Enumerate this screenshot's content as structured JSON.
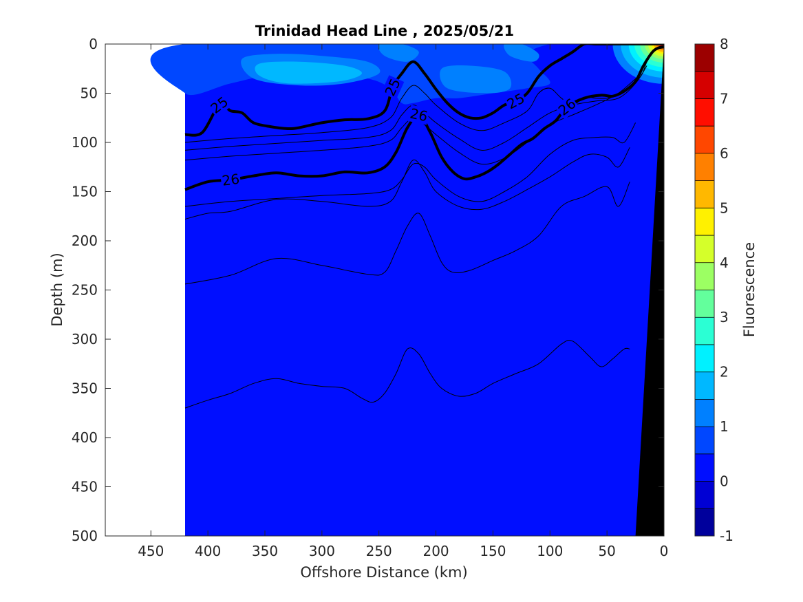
{
  "chart_data": {
    "type": "contour",
    "title": "Trinidad Head Line , 2025/05/21",
    "xlabel": "Offshore Distance (km)",
    "ylabel": "Depth (m)",
    "xlim": [
      490,
      0
    ],
    "ylim": [
      500,
      0
    ],
    "x_reversed": true,
    "y_reversed": true,
    "x_ticks": [
      450,
      400,
      350,
      300,
      250,
      200,
      150,
      100,
      50,
      0
    ],
    "y_ticks": [
      0,
      50,
      100,
      150,
      200,
      250,
      300,
      350,
      400,
      450,
      500
    ],
    "data_extent_x": [
      420,
      0
    ],
    "colorbar": {
      "label": "Fluorescence",
      "range": [
        -1,
        8
      ],
      "step": 0.5,
      "ticks": [
        -1,
        0,
        1,
        2,
        3,
        4,
        5,
        6,
        7,
        8
      ],
      "colormap": "jet"
    },
    "background_fluorescence": 0.3,
    "fluorescence_patches": [
      {
        "level": 0.7,
        "x": [
          420,
          380,
          340,
          300,
          260,
          240,
          230,
          220,
          200,
          180,
          150,
          120,
          100,
          110,
          120,
          100,
          80,
          60,
          40,
          30,
          420
        ],
        "y": [
          50,
          40,
          30,
          30,
          35,
          45,
          60,
          60,
          55,
          55,
          50,
          45,
          40,
          25,
          10,
          0,
          0,
          0,
          0,
          0,
          0
        ]
      },
      {
        "level": 1.2,
        "x": [
          370,
          340,
          300,
          260,
          250,
          280,
          320,
          360
        ],
        "y": [
          15,
          10,
          12,
          18,
          30,
          40,
          42,
          35
        ]
      },
      {
        "level": 1.7,
        "x": [
          355,
          320,
          280,
          265,
          285,
          330,
          355
        ],
        "y": [
          20,
          18,
          22,
          30,
          38,
          40,
          32
        ]
      },
      {
        "level": 1.2,
        "x": [
          195,
          170,
          140,
          135,
          155,
          190
        ],
        "y": [
          25,
          22,
          28,
          45,
          50,
          45
        ]
      },
      {
        "level": 1.2,
        "x": [
          250,
          230,
          215,
          225,
          245
        ],
        "y": [
          0,
          0,
          8,
          18,
          12
        ]
      },
      {
        "level": 1.2,
        "x": [
          140,
          125,
          110,
          115,
          135
        ],
        "y": [
          0,
          0,
          10,
          18,
          12
        ]
      }
    ],
    "nearshore_bloom": [
      {
        "level": 1.2,
        "radius": 45
      },
      {
        "level": 1.7,
        "radius": 38
      },
      {
        "level": 2.2,
        "radius": 31
      },
      {
        "level": 2.7,
        "radius": 26
      },
      {
        "level": 3.2,
        "radius": 21
      },
      {
        "level": 3.7,
        "radius": 17
      },
      {
        "level": 4.2,
        "radius": 14
      },
      {
        "level": 4.7,
        "radius": 11
      },
      {
        "level": 5.2,
        "radius": 9
      },
      {
        "level": 5.7,
        "radius": 7
      },
      {
        "level": 6.2,
        "radius": 5
      },
      {
        "level": 6.7,
        "radius": 4
      },
      {
        "level": 7.2,
        "radius": 3
      }
    ],
    "bathymetry": {
      "x": [
        25,
        0,
        0
      ],
      "y": [
        500,
        0,
        500
      ]
    },
    "density_contours": [
      {
        "level": 25,
        "bold": true,
        "label": "25",
        "x": [
          420,
          405,
          390,
          380,
          370,
          360,
          345,
          330,
          320,
          300,
          280,
          260,
          245,
          238,
          230,
          220,
          210,
          200,
          190,
          180,
          170,
          160,
          150,
          140,
          130,
          120,
          110,
          100,
          90,
          80,
          70,
          60,
          50,
          40,
          30,
          25,
          18,
          12,
          5,
          0
        ],
        "y": [
          92,
          90,
          62,
          68,
          70,
          80,
          84,
          86,
          85,
          80,
          77,
          76,
          68,
          44,
          30,
          18,
          30,
          46,
          60,
          70,
          75,
          75,
          70,
          62,
          58,
          50,
          33,
          22,
          15,
          8,
          0,
          0,
          0,
          0,
          0,
          0,
          0,
          0,
          0,
          0
        ]
      },
      {
        "level": 25.3,
        "bold": false,
        "x": [
          420,
          380,
          340,
          300,
          260,
          240,
          230,
          220,
          210,
          200,
          180,
          160,
          140,
          120,
          110,
          100,
          90,
          80,
          70,
          60,
          50,
          40,
          30,
          20,
          15,
          10
        ],
        "y": [
          100,
          96,
          93,
          90,
          85,
          75,
          55,
          42,
          50,
          62,
          80,
          88,
          80,
          68,
          50,
          45,
          55,
          62,
          54,
          55,
          55,
          50,
          44,
          32,
          18,
          8
        ]
      },
      {
        "level": 25.6,
        "bold": false,
        "x": [
          420,
          380,
          340,
          300,
          260,
          240,
          230,
          220,
          210,
          200,
          180,
          160,
          140,
          120,
          100,
          80,
          60,
          40,
          25,
          15
        ],
        "y": [
          108,
          104,
          101,
          98,
          95,
          88,
          72,
          62,
          70,
          80,
          96,
          108,
          100,
          85,
          70,
          62,
          58,
          55,
          40,
          22
        ]
      },
      {
        "level": 25.8,
        "bold": false,
        "x": [
          420,
          380,
          340,
          300,
          260,
          240,
          230,
          220,
          210,
          200,
          180,
          160,
          140,
          120,
          100,
          80,
          60,
          40,
          20
        ],
        "y": [
          118,
          114,
          111,
          108,
          104,
          98,
          85,
          75,
          82,
          92,
          110,
          122,
          116,
          100,
          82,
          72,
          62,
          50,
          30
        ]
      },
      {
        "level": 26,
        "bold": true,
        "label": "26",
        "x": [
          420,
          400,
          380,
          360,
          340,
          320,
          300,
          280,
          260,
          245,
          235,
          225,
          215,
          205,
          195,
          185,
          175,
          165,
          155,
          145,
          135,
          125,
          115,
          105,
          95,
          85,
          70,
          55,
          45,
          35,
          25,
          18,
          10,
          5,
          0
        ],
        "y": [
          148,
          140,
          138,
          134,
          131,
          134,
          134,
          130,
          131,
          125,
          110,
          85,
          72,
          90,
          115,
          130,
          137,
          135,
          130,
          122,
          112,
          102,
          96,
          86,
          78,
          64,
          55,
          52,
          53,
          48,
          38,
          22,
          8,
          4,
          3
        ]
      },
      {
        "level": 26.2,
        "bold": false,
        "x": [
          420,
          380,
          340,
          300,
          260,
          240,
          230,
          220,
          210,
          200,
          180,
          160,
          140,
          120,
          100,
          80,
          60,
          45,
          35,
          25
        ],
        "y": [
          165,
          160,
          157,
          154,
          152,
          148,
          138,
          122,
          125,
          138,
          155,
          160,
          150,
          135,
          112,
          98,
          95,
          95,
          100,
          80
        ]
      },
      {
        "level": 26.4,
        "bold": false,
        "x": [
          420,
          400,
          380,
          340,
          300,
          260,
          240,
          230,
          220,
          210,
          200,
          180,
          160,
          140,
          120,
          100,
          80,
          65,
          50,
          40,
          30
        ],
        "y": [
          178,
          172,
          170,
          158,
          160,
          165,
          160,
          140,
          118,
          130,
          150,
          165,
          168,
          160,
          148,
          135,
          120,
          112,
          115,
          125,
          105
        ]
      },
      {
        "level": 26.6,
        "bold": false,
        "x": [
          420,
          380,
          340,
          300,
          260,
          245,
          235,
          225,
          215,
          205,
          195,
          185,
          170,
          150,
          130,
          110,
          90,
          70,
          50,
          40,
          30
        ],
        "y": [
          244,
          235,
          218,
          225,
          234,
          232,
          210,
          185,
          172,
          195,
          222,
          232,
          230,
          220,
          210,
          195,
          165,
          155,
          145,
          165,
          140
        ]
      },
      {
        "level": 26.8,
        "bold": false,
        "x": [
          420,
          400,
          380,
          360,
          340,
          320,
          300,
          280,
          265,
          255,
          245,
          235,
          225,
          215,
          205,
          195,
          180,
          165,
          150,
          130,
          110,
          90,
          80,
          65,
          55,
          45,
          35,
          30
        ],
        "y": [
          370,
          362,
          355,
          345,
          340,
          345,
          348,
          350,
          360,
          364,
          355,
          335,
          310,
          315,
          335,
          350,
          358,
          355,
          345,
          335,
          325,
          305,
          302,
          318,
          328,
          320,
          310,
          310
        ]
      }
    ]
  }
}
